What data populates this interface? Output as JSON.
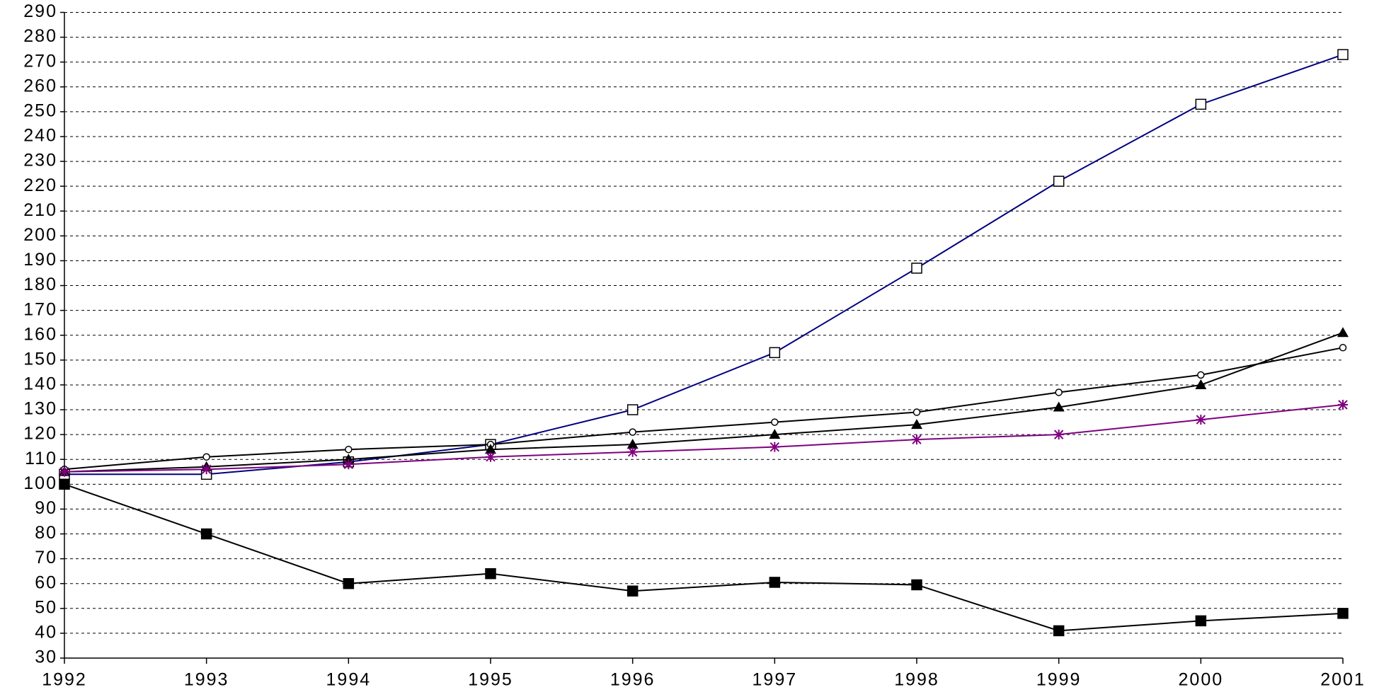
{
  "chart_data": {
    "type": "line",
    "x": [
      1992,
      1993,
      1994,
      1995,
      1996,
      1997,
      1998,
      1999,
      2000,
      2001
    ],
    "xlim": [
      1992,
      2001
    ],
    "xticks": [
      1992,
      1993,
      1994,
      1995,
      1996,
      1997,
      1998,
      1999,
      2000,
      2001
    ],
    "ylim": [
      30,
      290
    ],
    "yticks": [
      30,
      40,
      50,
      60,
      70,
      80,
      90,
      100,
      110,
      120,
      130,
      140,
      150,
      160,
      170,
      180,
      190,
      200,
      210,
      220,
      230,
      240,
      250,
      260,
      270,
      280,
      290
    ],
    "grid": true,
    "series": [
      {
        "color": "#000080",
        "marker": "square-open",
        "values": [
          104,
          104,
          109,
          116,
          130,
          153,
          187,
          222,
          253,
          273
        ]
      },
      {
        "color": "#000000",
        "marker": "circle-open",
        "values": [
          106,
          111,
          114,
          116,
          121,
          125,
          129,
          137,
          144,
          155
        ]
      },
      {
        "color": "#000000",
        "marker": "triangle",
        "values": [
          105,
          107,
          110,
          114,
          116,
          120,
          124,
          131,
          140,
          161
        ]
      },
      {
        "color": "#800080",
        "marker": "star",
        "values": [
          105,
          106,
          108,
          111,
          113,
          115,
          118,
          120,
          126,
          132
        ]
      },
      {
        "color": "#000000",
        "marker": "square-filled",
        "values": [
          100,
          80,
          60,
          64,
          57,
          60.5,
          59.5,
          41,
          45,
          48
        ]
      }
    ]
  }
}
